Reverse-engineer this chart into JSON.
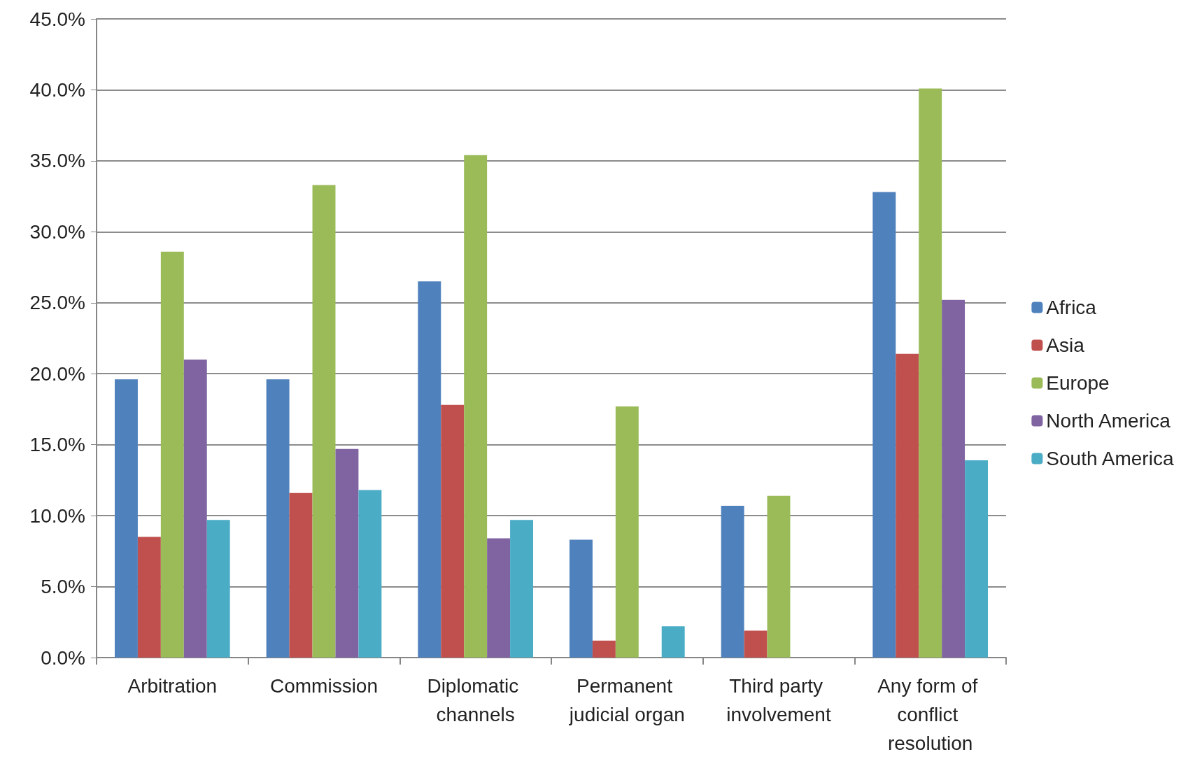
{
  "chart_data": {
    "type": "bar",
    "categories": [
      "Arbitration",
      "Commission",
      "Diplomatic channels",
      "Permanent judicial organ",
      "Third party involvement",
      "Any form of conflict resolution"
    ],
    "series": [
      {
        "name": "Africa",
        "color": "#4f81bd",
        "values": [
          19.6,
          19.6,
          26.5,
          8.3,
          10.7,
          32.8
        ]
      },
      {
        "name": "Asia",
        "color": "#c0504d",
        "values": [
          8.5,
          11.6,
          17.8,
          1.2,
          1.9,
          21.4
        ]
      },
      {
        "name": "Europe",
        "color": "#9bbb59",
        "values": [
          28.6,
          33.3,
          35.4,
          17.7,
          11.4,
          40.1
        ]
      },
      {
        "name": "North America",
        "color": "#8064a2",
        "values": [
          21.0,
          14.7,
          8.4,
          0,
          0,
          25.2
        ]
      },
      {
        "name": "South America",
        "color": "#4bacc6",
        "values": [
          9.7,
          11.8,
          9.7,
          2.2,
          0,
          13.9
        ]
      }
    ],
    "ylim": [
      0,
      45
    ],
    "yticks": [
      {
        "value": 0,
        "label": "0.0%"
      },
      {
        "value": 5,
        "label": "5.0%"
      },
      {
        "value": 10,
        "label": "10.0%"
      },
      {
        "value": 15,
        "label": "15.0%"
      },
      {
        "value": 20,
        "label": "20.0%"
      },
      {
        "value": 25,
        "label": "25.0%"
      },
      {
        "value": 30,
        "label": "30.0%"
      },
      {
        "value": 35,
        "label": "35.0%"
      },
      {
        "value": 40,
        "label": "40.0%"
      },
      {
        "value": 45,
        "label": "45.0%"
      }
    ],
    "grid": "y",
    "legend": "right"
  }
}
